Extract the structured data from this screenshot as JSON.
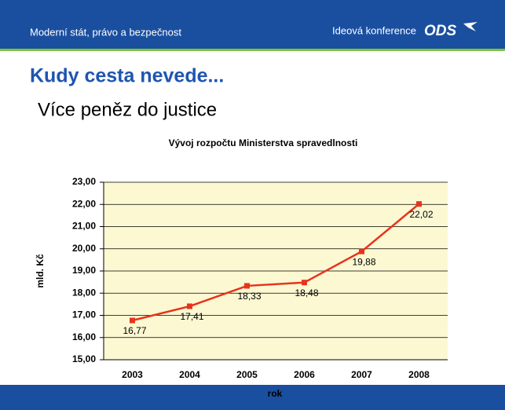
{
  "slide": {
    "header_left": "Moderní stát, právo a bezpečnost",
    "header_right": "Ideová konference",
    "logo": "ODS",
    "title": "Kudy cesta nevede...",
    "subtitle": "Více peněz do justice"
  },
  "chart_data": {
    "type": "line",
    "title": "Vývoj rozpočtu Ministerstva spravedlnosti",
    "x_label": "rok",
    "y_label": "mld. Kč",
    "categories": [
      "2003",
      "2004",
      "2005",
      "2006",
      "2007",
      "2008"
    ],
    "values": [
      16.77,
      17.41,
      18.33,
      18.48,
      19.88,
      22.02
    ],
    "value_labels": [
      "16,77",
      "17,41",
      "18,33",
      "18,48",
      "19,88",
      "22,02"
    ],
    "color": "#e8331c",
    "ylim": [
      15,
      23
    ],
    "yticks": [
      {
        "value": 15,
        "label": "15,00"
      },
      {
        "value": 16,
        "label": "16,00"
      },
      {
        "value": 17,
        "label": "17,00"
      },
      {
        "value": 18,
        "label": "18,00"
      },
      {
        "value": 19,
        "label": "19,00"
      },
      {
        "value": 20,
        "label": "20,00"
      },
      {
        "value": 21,
        "label": "21,00"
      },
      {
        "value": 22,
        "label": "22,00"
      },
      {
        "value": 23,
        "label": "23,00"
      }
    ],
    "grid": true
  }
}
